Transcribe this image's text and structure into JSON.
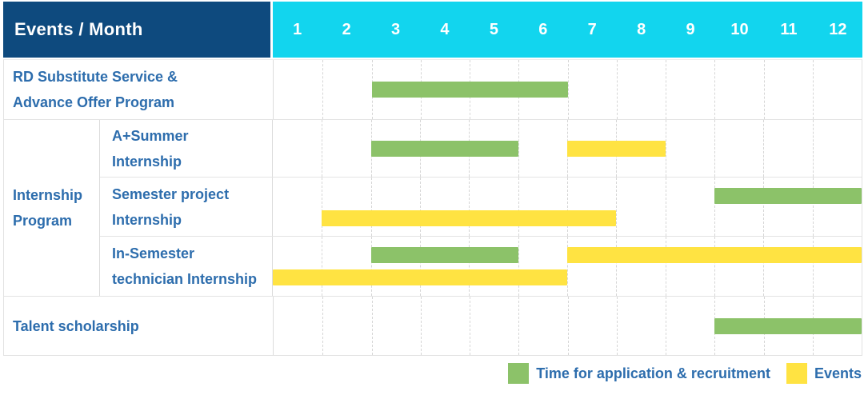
{
  "header": {
    "title": "Events / Month"
  },
  "colors": {
    "application": "#8cc269",
    "event": "#ffe342",
    "header_bg": "#0e4a7e",
    "months_bg": "#12d5ee",
    "label_text": "#2d6dad",
    "grid_line": "#d6d6d6"
  },
  "chart_data": {
    "type": "gantt",
    "unit": "month",
    "months": [
      "1",
      "2",
      "3",
      "4",
      "5",
      "6",
      "7",
      "8",
      "9",
      "10",
      "11",
      "12"
    ],
    "group_label": [
      "Internship",
      "Program"
    ],
    "rows": [
      {
        "label": "RD Substitute Service & Advance Offer Program",
        "label_lines": [
          "RD Substitute Service &",
          "Advance Offer Program"
        ],
        "group": null,
        "lines": [
          [
            {
              "kind": "application",
              "from": 3,
              "to": 6
            }
          ]
        ]
      },
      {
        "label": "A+Summer Internship",
        "label_lines": [
          "A+Summer",
          "Internship"
        ],
        "group": "Internship Program",
        "lines": [
          [
            {
              "kind": "application",
              "from": 3,
              "to": 5
            },
            {
              "kind": "event",
              "from": 7,
              "to": 8
            }
          ]
        ]
      },
      {
        "label": "Semester project Internship",
        "label_lines": [
          "Semester project",
          "Internship"
        ],
        "group": "Internship Program",
        "lines": [
          [
            {
              "kind": "application",
              "from": 10,
              "to": 12
            }
          ],
          [
            {
              "kind": "event",
              "from": 2,
              "to": 7
            }
          ]
        ]
      },
      {
        "label": "In-Semester technician Internship",
        "label_lines": [
          "In-Semester",
          "technician Internship"
        ],
        "group": "Internship Program",
        "lines": [
          [
            {
              "kind": "application",
              "from": 3,
              "to": 5
            },
            {
              "kind": "event",
              "from": 7,
              "to": 12
            }
          ],
          [
            {
              "kind": "event",
              "from": 1,
              "to": 6
            }
          ]
        ]
      },
      {
        "label": "Talent scholarship",
        "label_lines": [
          "Talent scholarship"
        ],
        "group": null,
        "lines": [
          [
            {
              "kind": "application",
              "from": 10,
              "to": 12
            }
          ]
        ]
      }
    ],
    "legend": [
      {
        "kind": "application",
        "label": "Time for application & recruitment"
      },
      {
        "kind": "event",
        "label": "Events"
      }
    ]
  }
}
